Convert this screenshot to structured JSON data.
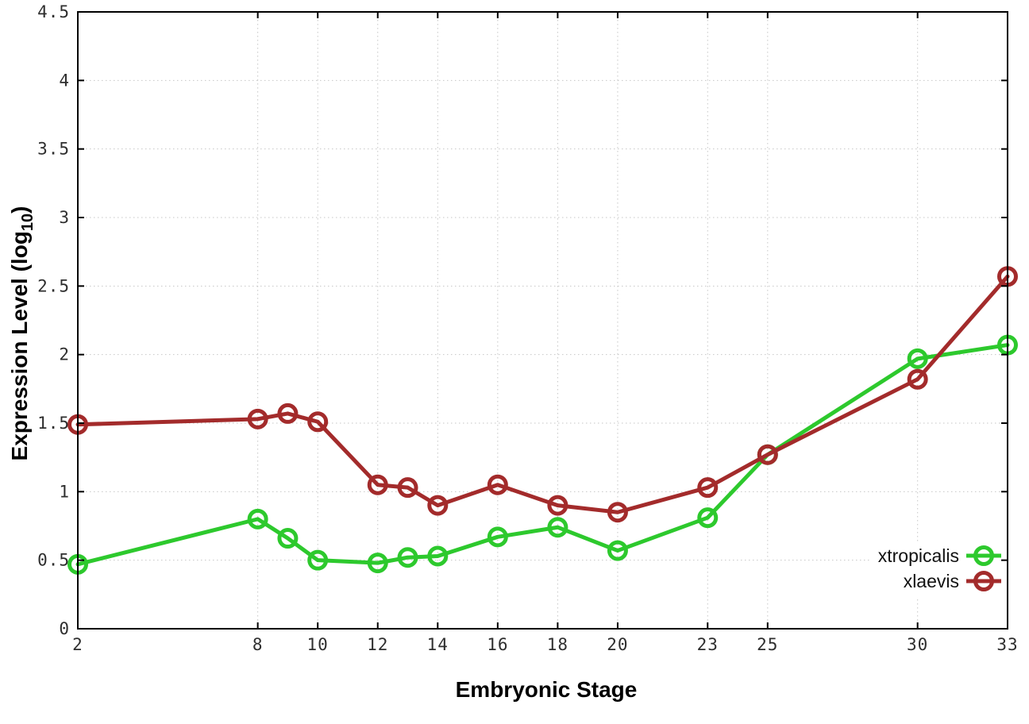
{
  "chart_data": {
    "type": "line",
    "title": "",
    "xlabel": "Embryonic Stage",
    "ylabel": "Expression Level (log10)",
    "ylabel_rich": {
      "pre": "Expression Level (log",
      "sub": "10",
      "post": ")"
    },
    "xlim": [
      2,
      33
    ],
    "ylim": [
      0,
      4.5
    ],
    "grid": true,
    "legend_position": "inside bottom-right",
    "marker": "open-circle",
    "x": [
      2,
      8,
      9,
      10,
      12,
      13,
      14,
      16,
      18,
      20,
      23,
      25,
      30,
      33
    ],
    "xtick_values": [
      2,
      8,
      10,
      12,
      14,
      16,
      18,
      20,
      23,
      25,
      30,
      33
    ],
    "xtick_labels": [
      "2",
      "8",
      "10",
      "12",
      "14",
      "16",
      "18",
      "20",
      "23",
      "25",
      "30",
      "33"
    ],
    "ytick_values": [
      0,
      0.5,
      1,
      1.5,
      2,
      2.5,
      3,
      3.5,
      4,
      4.5
    ],
    "ytick_labels": [
      "0",
      "0.5",
      "1",
      "1.5",
      "2",
      "2.5",
      "3",
      "3.5",
      "4",
      "4.5"
    ],
    "series": [
      {
        "name": "xtropicalis",
        "color": "#2dc92d",
        "values": [
          0.47,
          0.8,
          0.66,
          0.5,
          0.48,
          0.52,
          0.53,
          0.67,
          0.74,
          0.57,
          0.81,
          1.27,
          1.97,
          2.07
        ]
      },
      {
        "name": "xlaevis",
        "color": "#a32b2b",
        "values": [
          1.49,
          1.53,
          1.57,
          1.51,
          1.05,
          1.03,
          0.9,
          1.05,
          0.9,
          0.85,
          1.03,
          1.27,
          1.82,
          2.57
        ]
      }
    ],
    "colors": {
      "grid": "#c6c6c6",
      "axis": "#000000",
      "tick_text": "#2e2e2e",
      "background": "#ffffff"
    }
  }
}
